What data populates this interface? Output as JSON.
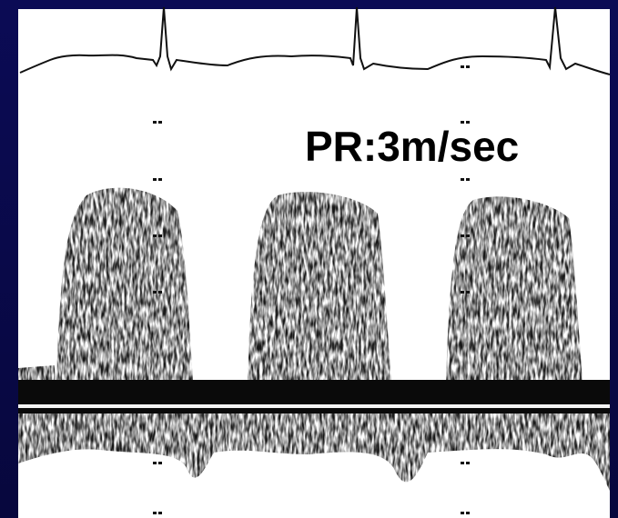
{
  "label": "PR:3m/sec"
}
